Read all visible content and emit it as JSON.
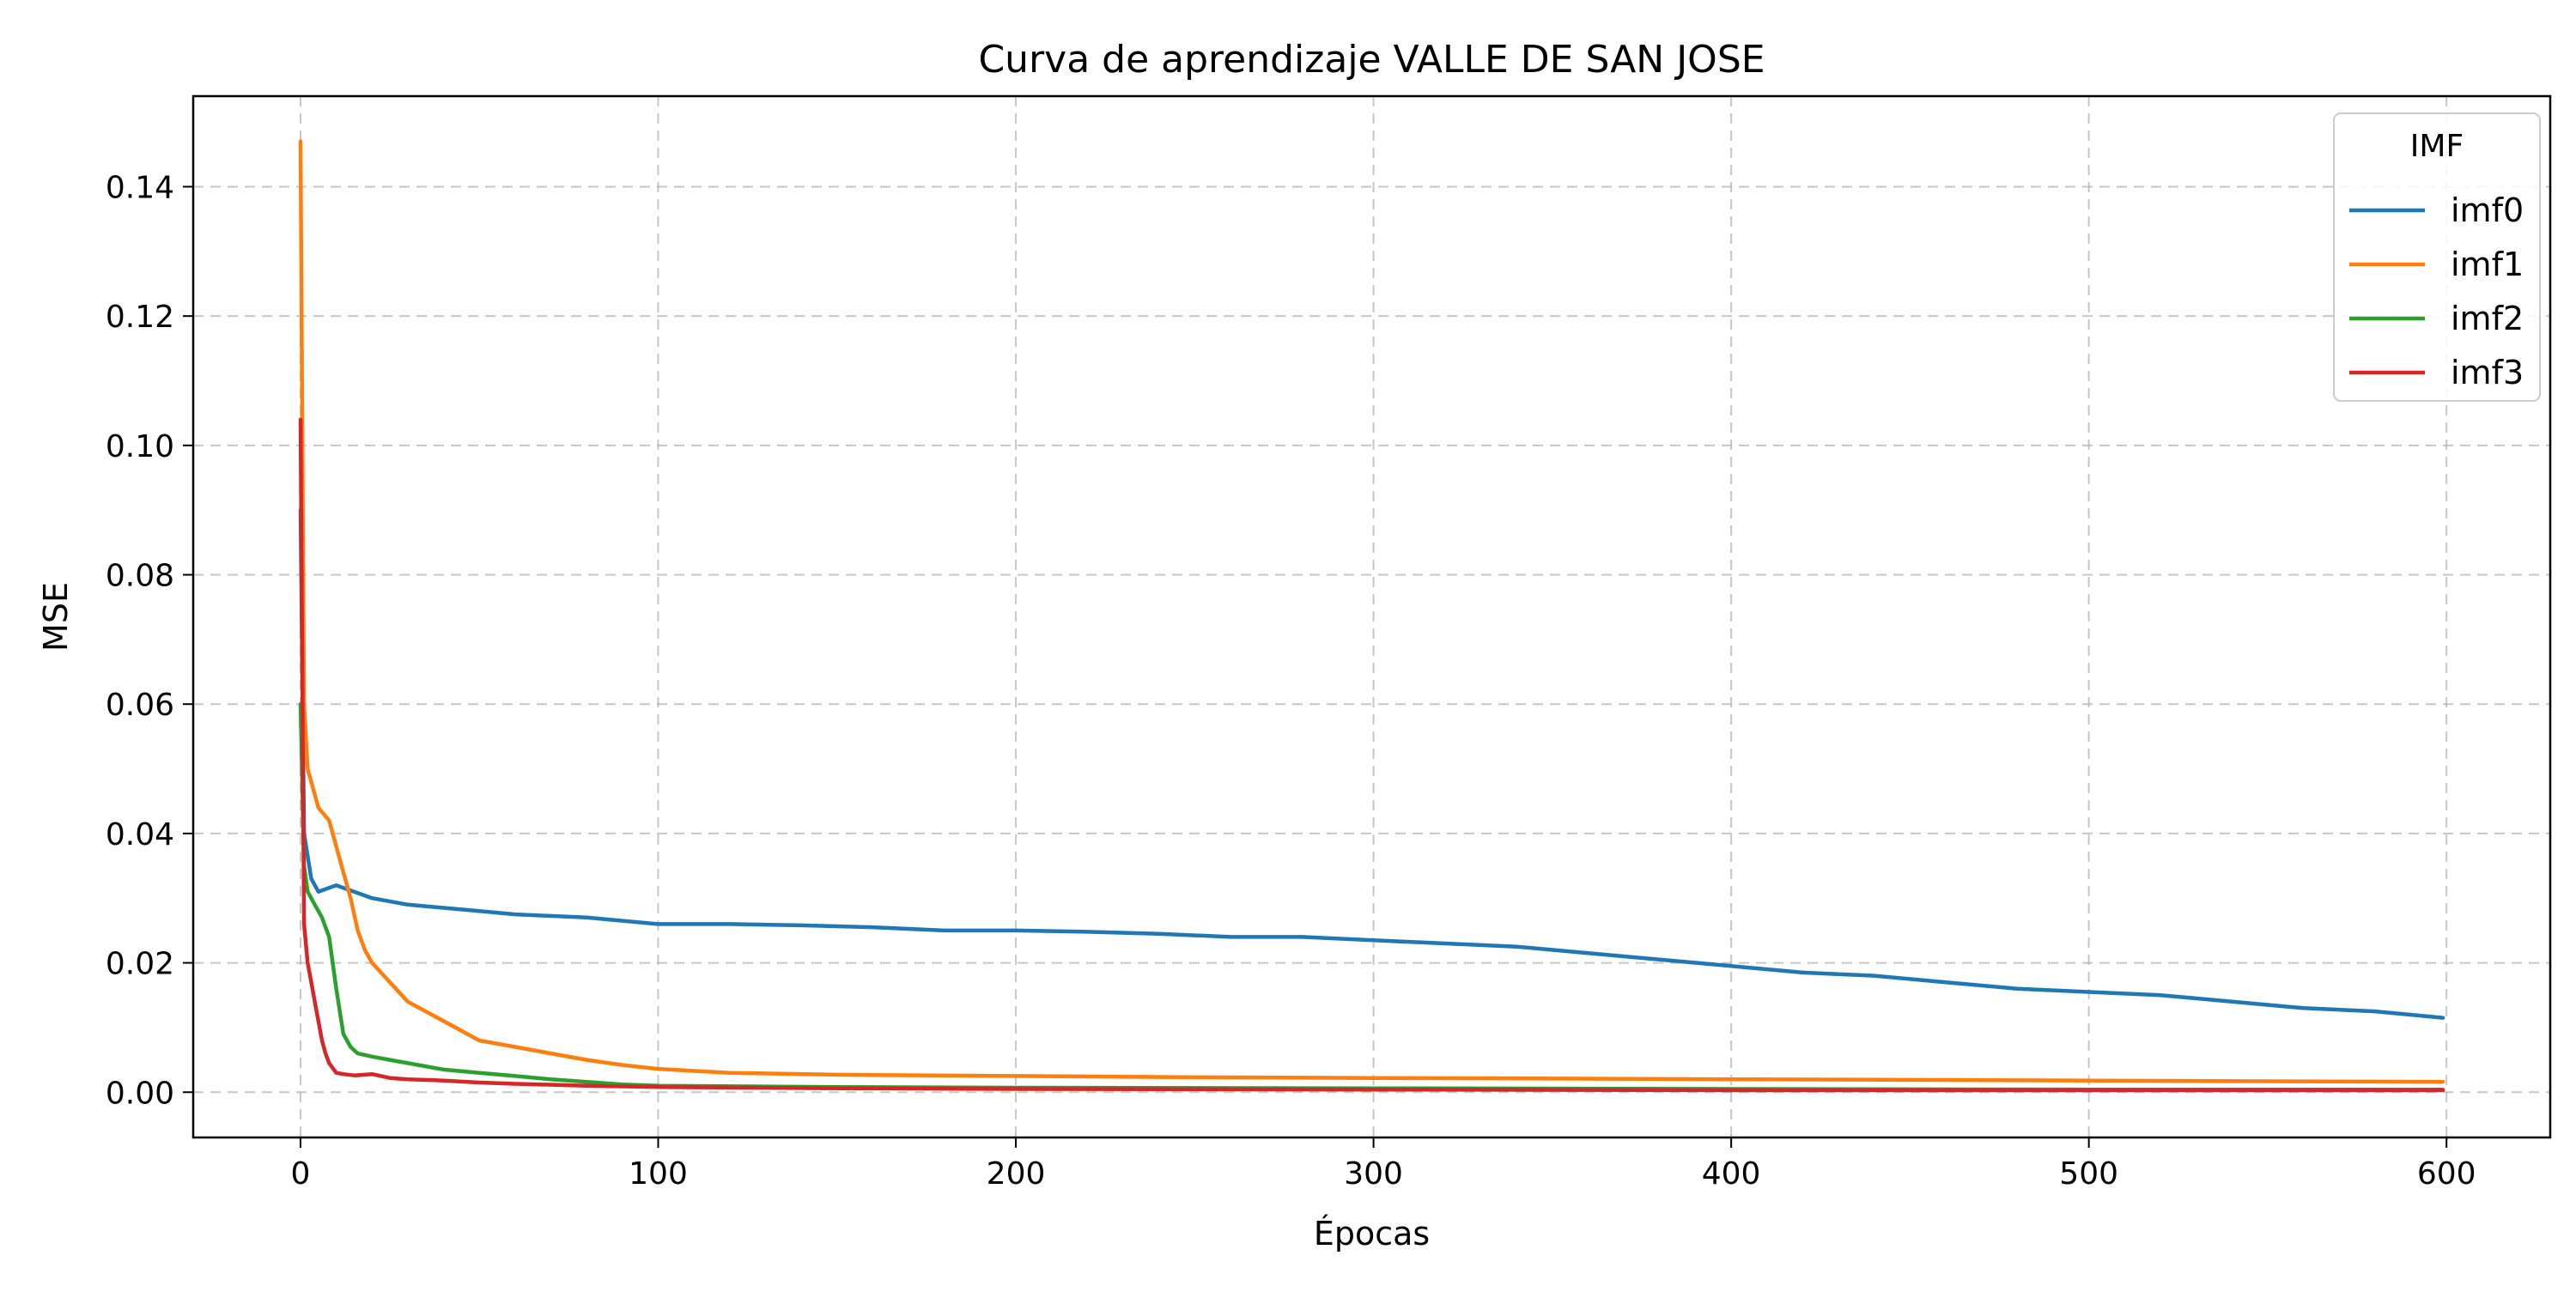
{
  "chart_data": {
    "type": "line",
    "title": "Curva de aprendizaje VALLE DE SAN JOSE",
    "xlabel": "Épocas",
    "ylabel": "MSE",
    "xlim": [
      -30,
      629
    ],
    "ylim": [
      -0.007,
      0.154
    ],
    "xticks": [
      0,
      100,
      200,
      300,
      400,
      500,
      600
    ],
    "xtick_labels": [
      "0",
      "100",
      "200",
      "300",
      "400",
      "500",
      "600"
    ],
    "yticks": [
      0.0,
      0.02,
      0.04,
      0.06,
      0.08,
      0.1,
      0.12,
      0.14
    ],
    "ytick_labels": [
      "0.00",
      "0.02",
      "0.04",
      "0.06",
      "0.08",
      "0.10",
      "0.12",
      "0.14"
    ],
    "grid": true,
    "legend": {
      "title": "IMF",
      "placement": "top-right"
    },
    "series": [
      {
        "name": "imf0",
        "color": "#1f77b4",
        "x": [
          0,
          1,
          3,
          5,
          10,
          20,
          30,
          40,
          50,
          60,
          80,
          100,
          120,
          140,
          160,
          180,
          200,
          220,
          240,
          260,
          280,
          300,
          320,
          340,
          360,
          380,
          400,
          420,
          440,
          460,
          480,
          500,
          520,
          540,
          560,
          580,
          599
        ],
        "y": [
          0.09,
          0.04,
          0.033,
          0.031,
          0.032,
          0.03,
          0.029,
          0.0285,
          0.028,
          0.0275,
          0.027,
          0.026,
          0.026,
          0.0258,
          0.0255,
          0.025,
          0.025,
          0.0248,
          0.0245,
          0.024,
          0.024,
          0.0235,
          0.023,
          0.0225,
          0.0215,
          0.0205,
          0.0195,
          0.0185,
          0.018,
          0.017,
          0.016,
          0.0155,
          0.015,
          0.014,
          0.013,
          0.0125,
          0.0115
        ]
      },
      {
        "name": "imf1",
        "color": "#ff7f0e",
        "x": [
          0,
          1,
          2,
          5,
          8,
          10,
          12,
          14,
          16,
          18,
          20,
          25,
          30,
          40,
          50,
          60,
          70,
          80,
          90,
          100,
          120,
          150,
          200,
          250,
          300,
          350,
          400,
          450,
          500,
          550,
          599
        ],
        "y": [
          0.147,
          0.06,
          0.05,
          0.044,
          0.042,
          0.038,
          0.034,
          0.03,
          0.025,
          0.022,
          0.02,
          0.017,
          0.014,
          0.011,
          0.008,
          0.007,
          0.006,
          0.005,
          0.0042,
          0.0036,
          0.003,
          0.0027,
          0.0025,
          0.0023,
          0.0022,
          0.0021,
          0.002,
          0.0019,
          0.0018,
          0.0017,
          0.0016
        ]
      },
      {
        "name": "imf2",
        "color": "#2ca02c",
        "x": [
          0,
          1,
          2,
          4,
          6,
          8,
          10,
          12,
          14,
          16,
          20,
          25,
          30,
          40,
          50,
          60,
          70,
          80,
          90,
          100,
          150,
          200,
          300,
          400,
          500,
          599
        ],
        "y": [
          0.06,
          0.035,
          0.031,
          0.029,
          0.027,
          0.024,
          0.016,
          0.009,
          0.007,
          0.006,
          0.0055,
          0.005,
          0.0045,
          0.0035,
          0.003,
          0.0025,
          0.002,
          0.0016,
          0.0012,
          0.001,
          0.0008,
          0.0007,
          0.0006,
          0.0005,
          0.0004,
          0.0004
        ]
      },
      {
        "name": "imf3",
        "color": "#d62728",
        "x": [
          0,
          1,
          2,
          3,
          4,
          5,
          6,
          7,
          8,
          10,
          12,
          15,
          20,
          25,
          30,
          40,
          50,
          60,
          80,
          100,
          150,
          200,
          300,
          400,
          500,
          599
        ],
        "y": [
          0.104,
          0.026,
          0.02,
          0.017,
          0.014,
          0.011,
          0.008,
          0.006,
          0.0045,
          0.003,
          0.0028,
          0.0026,
          0.0028,
          0.0022,
          0.002,
          0.0018,
          0.0015,
          0.0013,
          0.001,
          0.0008,
          0.0006,
          0.0005,
          0.0004,
          0.0003,
          0.0003,
          0.0003
        ]
      }
    ]
  }
}
